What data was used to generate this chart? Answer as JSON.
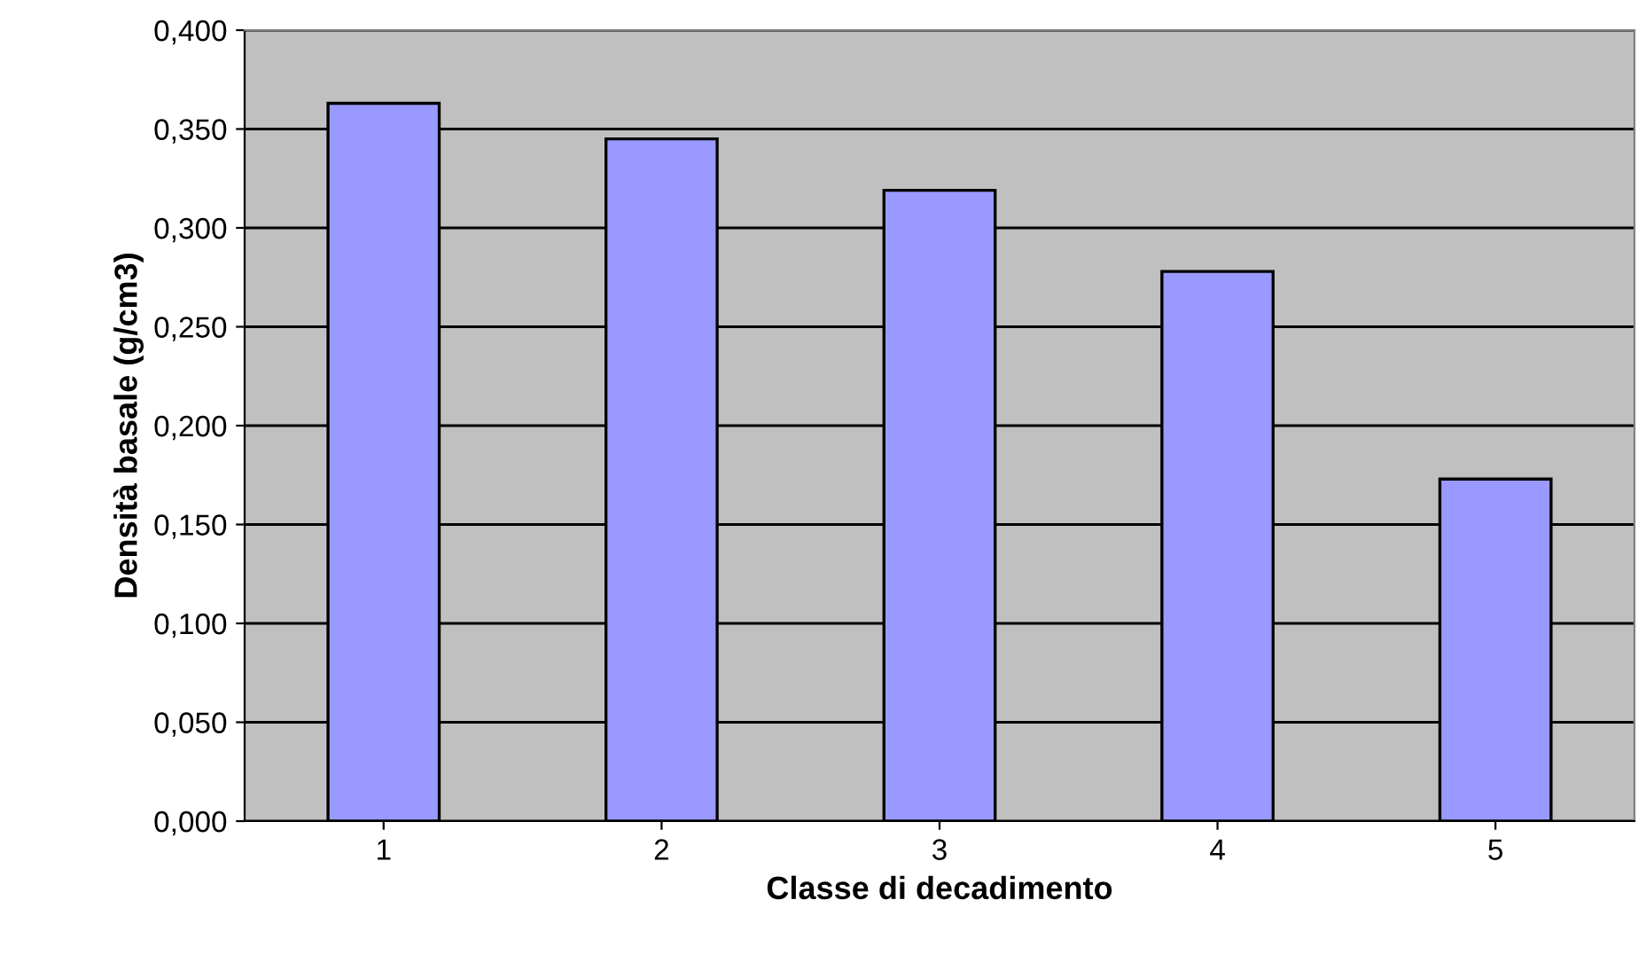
{
  "chart_data": {
    "type": "bar",
    "xlabel": "Classe di decadimento",
    "ylabel": "Densità basale (g/cm3)",
    "categories": [
      "1",
      "2",
      "3",
      "4",
      "5"
    ],
    "values": [
      0.363,
      0.345,
      0.319,
      0.278,
      0.173
    ],
    "color": "#9999ff",
    "ylim": [
      0,
      0.4
    ],
    "yticks": [
      {
        "value": 0,
        "label": "0,000"
      },
      {
        "value": 0.05,
        "label": "0,050"
      },
      {
        "value": 0.1,
        "label": "0,100"
      },
      {
        "value": 0.15,
        "label": "0,150"
      },
      {
        "value": 0.2,
        "label": "0,200"
      },
      {
        "value": 0.25,
        "label": "0,250"
      },
      {
        "value": 0.3,
        "label": "0,300"
      },
      {
        "value": 0.35,
        "label": "0,350"
      },
      {
        "value": 0.4,
        "label": "0,400"
      }
    ],
    "grid": "y",
    "legend": false
  }
}
